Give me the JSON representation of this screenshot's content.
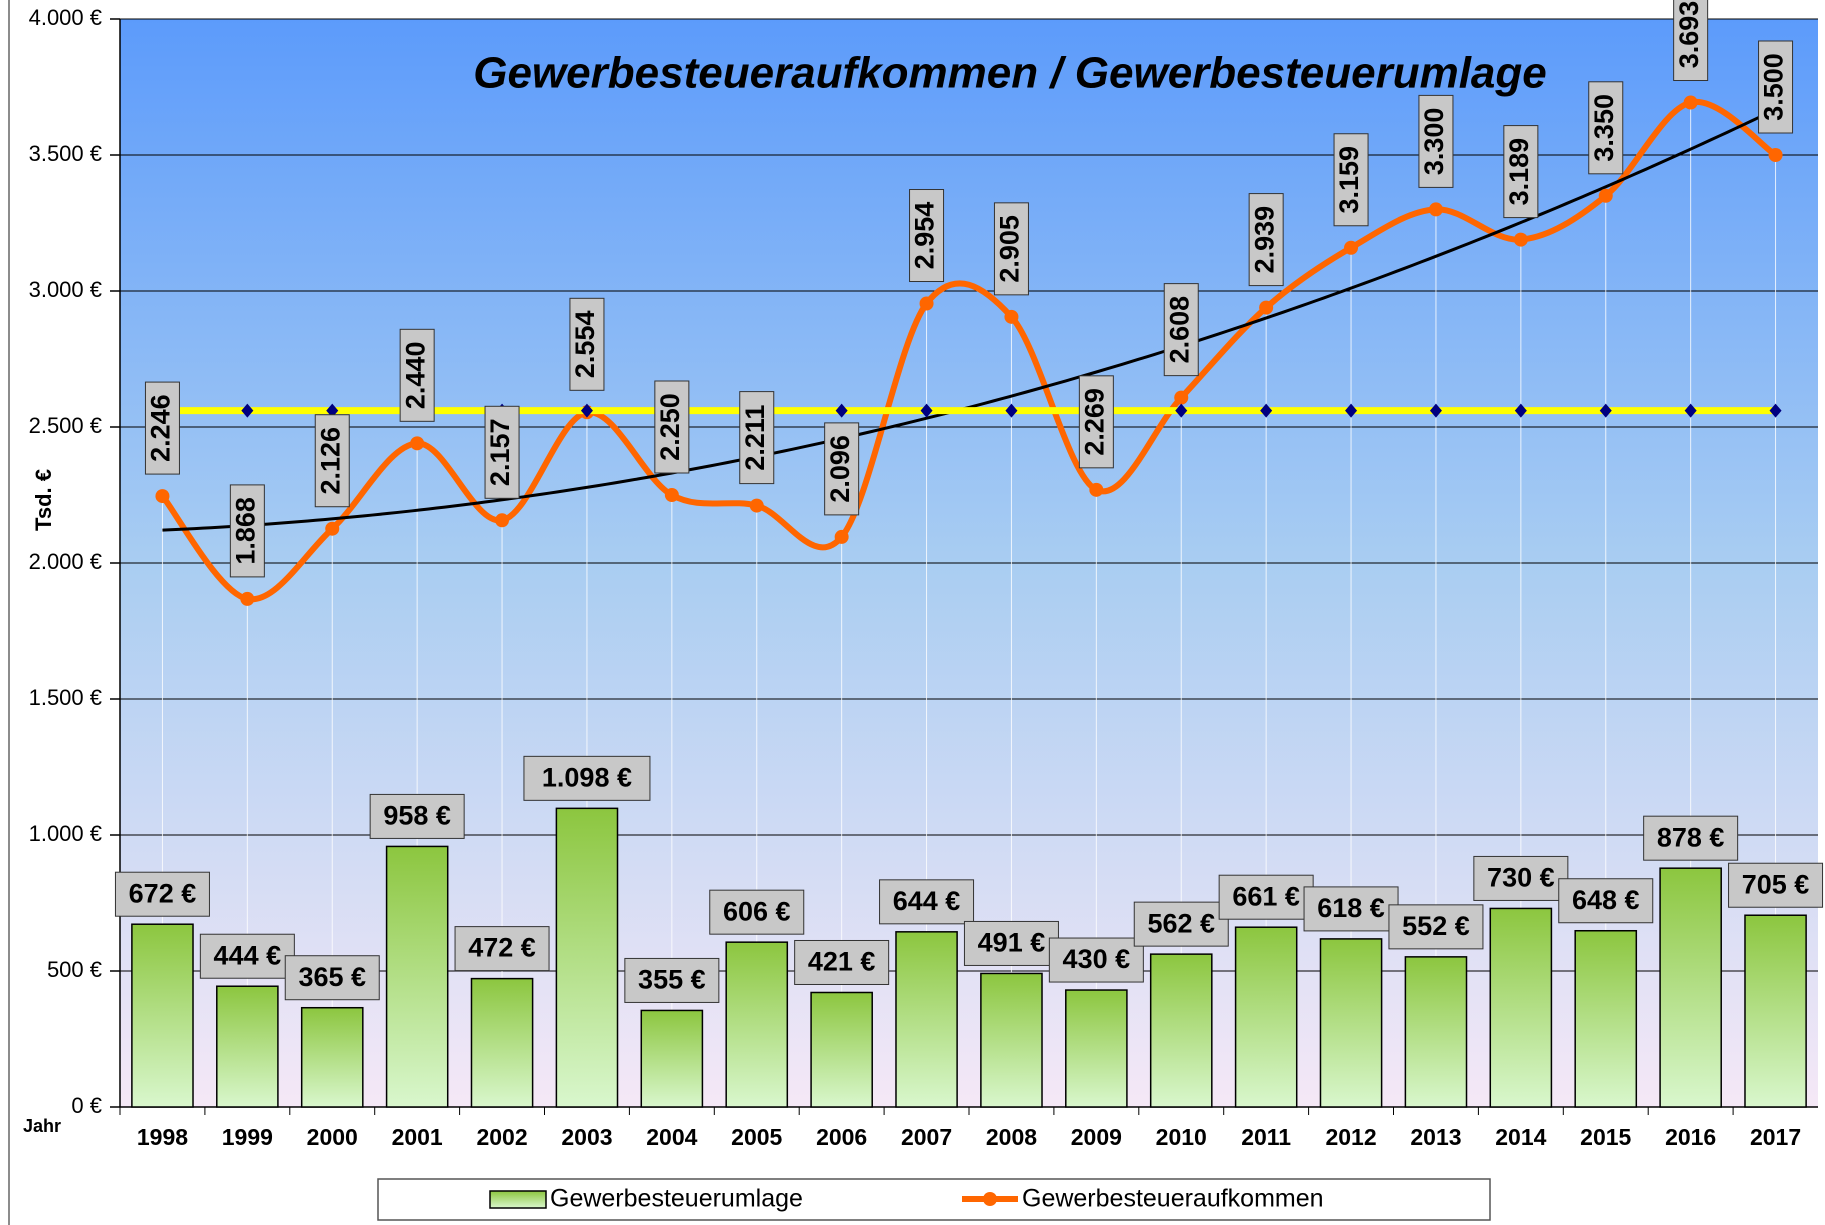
{
  "chart_data": {
    "type": "bar_line",
    "title": "Gewerbesteueraufkommen / Gewerbesteuerumlage",
    "y_label": "Tsd. €",
    "x_label": "Jahr",
    "categories": [
      "1998",
      "1999",
      "2000",
      "2001",
      "2002",
      "2003",
      "2004",
      "2005",
      "2006",
      "2007",
      "2008",
      "2009",
      "2010",
      "2011",
      "2012",
      "2013",
      "2014",
      "2015",
      "2016",
      "2017"
    ],
    "series": [
      {
        "name": "Gewerbesteuerumlage",
        "type": "bar",
        "color": "#99cc33",
        "values": [
          672,
          444,
          365,
          958,
          472,
          1098,
          355,
          606,
          421,
          644,
          491,
          430,
          562,
          661,
          618,
          552,
          730,
          648,
          878,
          705
        ],
        "value_labels": [
          "672 €",
          "444 €",
          "365 €",
          "958 €",
          "472 €",
          "1.098 €",
          "355 €",
          "606 €",
          "421 €",
          "644 €",
          "491 €",
          "430 €",
          "562 €",
          "661 €",
          "618 €",
          "552 €",
          "730 €",
          "648 €",
          "878 €",
          "705 €"
        ]
      },
      {
        "name": "Gewerbesteueraufkommen",
        "type": "line",
        "smooth": true,
        "color": "#ff6600",
        "values": [
          2246,
          1868,
          2126,
          2440,
          2157,
          2554,
          2250,
          2211,
          2096,
          2954,
          2905,
          2269,
          2608,
          2939,
          3159,
          3300,
          3189,
          3350,
          3693,
          3500
        ],
        "value_labels": [
          "2.246",
          "1.868",
          "2.126",
          "2.440",
          "2.157",
          "2.554",
          "2.250",
          "2.211",
          "2.096",
          "2.954",
          "2.905",
          "2.269",
          "2.608",
          "2.939",
          "3.159",
          "3.300",
          "3.189",
          "3.350",
          "3.693",
          "3.500"
        ],
        "trendline": {
          "kind": "polynomial",
          "order": 2,
          "color": "#000000"
        }
      },
      {
        "type": "line",
        "color": "#ffff00",
        "marker_color": "#000080",
        "values": [
          2560,
          2560,
          2560,
          2560,
          2560,
          2560,
          2560,
          2560,
          2560,
          2560,
          2560,
          2560,
          2560,
          2560,
          2560,
          2560,
          2560,
          2560,
          2560,
          2560
        ]
      }
    ],
    "ylim": [
      0,
      4000
    ],
    "yticks": [
      {
        "value": 0,
        "label": "0 €"
      },
      {
        "value": 500,
        "label": "500 €"
      },
      {
        "value": 1000,
        "label": "1.000 €"
      },
      {
        "value": 1500,
        "label": "1.500 €"
      },
      {
        "value": 2000,
        "label": "2.000 €"
      },
      {
        "value": 2500,
        "label": "2.500 €"
      },
      {
        "value": 3000,
        "label": "3.000 €"
      },
      {
        "value": 3500,
        "label": "3.500 €"
      },
      {
        "value": 4000,
        "label": "4.000 €"
      }
    ],
    "grid": true,
    "legend": "bottom"
  }
}
